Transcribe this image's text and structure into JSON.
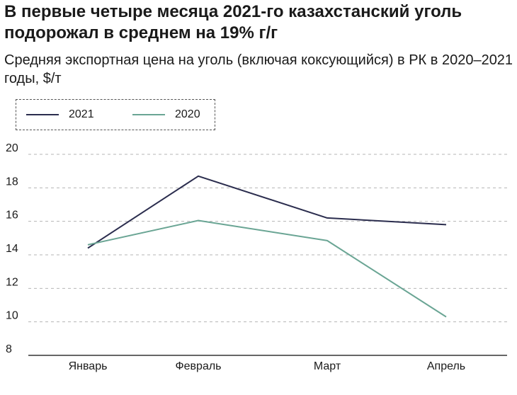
{
  "title": "В первые четыре месяца 2021-го казахстанский уголь подорожал в среднем на 19% г/г",
  "subtitle": "Средняя экспортная цена на уголь (включая коксующийся) в РК в 2020–2021 годы, $/т",
  "chart_data": {
    "type": "line",
    "categories": [
      "Январь",
      "Февраль",
      "Март",
      "Апрель"
    ],
    "series": [
      {
        "name": "2021",
        "color": "#2b2d4e",
        "values": [
          14.4,
          18.7,
          16.2,
          15.8
        ]
      },
      {
        "name": "2020",
        "color": "#6aa594",
        "values": [
          14.6,
          16.05,
          14.85,
          10.3
        ]
      }
    ],
    "ylim": [
      8,
      20
    ],
    "yticks": [
      "8",
      "10",
      "12",
      "14",
      "16",
      "18",
      "20"
    ],
    "grid": true,
    "legend_position": "top-left"
  }
}
